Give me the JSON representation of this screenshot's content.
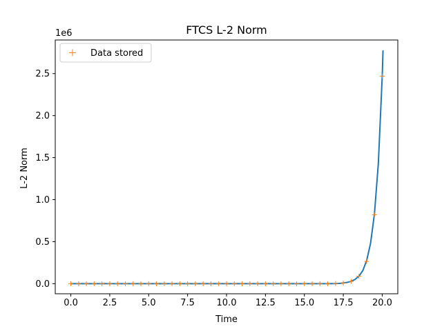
{
  "chart_data": {
    "type": "line",
    "title": "FTCS L-2 Norm",
    "xlabel": "Time",
    "ylabel": "L-2 Norm",
    "y_offset_label": "1e6",
    "xlim": [
      -1.0,
      21.0
    ],
    "ylim": [
      -120000,
      2900000
    ],
    "x_ticks": [
      0.0,
      2.5,
      5.0,
      7.5,
      10.0,
      12.5,
      15.0,
      17.5,
      20.0
    ],
    "x_tick_labels": [
      "0.0",
      "2.5",
      "5.0",
      "7.5",
      "10.0",
      "12.5",
      "15.0",
      "17.5",
      "20.0"
    ],
    "y_ticks": [
      0,
      500000,
      1000000,
      1500000,
      2000000,
      2500000
    ],
    "y_tick_labels": [
      "0.0",
      "0.5",
      "1.0",
      "1.5",
      "2.0",
      "2.5"
    ],
    "grid": false,
    "legend_position": "top-left",
    "series": [
      {
        "name": "",
        "kind": "line",
        "color": "#1f77b4",
        "x": [
          0,
          0.5,
          1,
          1.5,
          2,
          2.5,
          3,
          3.5,
          4,
          4.5,
          5,
          5.5,
          6,
          6.5,
          7,
          7.5,
          8,
          8.5,
          9,
          9.5,
          10,
          10.5,
          11,
          11.5,
          12,
          12.5,
          13,
          13.5,
          14,
          14.5,
          15,
          15.5,
          16,
          16.5,
          17,
          17.25,
          17.5,
          17.75,
          18,
          18.25,
          18.5,
          18.75,
          19,
          19.25,
          19.5,
          19.75,
          20,
          20.05
        ],
        "y": [
          0,
          0,
          0,
          0,
          0,
          0,
          0,
          0,
          0,
          0,
          0,
          0,
          0,
          0,
          0,
          0,
          0,
          0,
          0,
          0,
          0,
          0,
          0,
          0,
          0,
          0,
          0,
          0,
          0,
          0,
          0,
          0,
          15,
          50,
          1500,
          3000,
          8000,
          15000,
          28000,
          50000,
          88000,
          155000,
          275000,
          480000,
          830000,
          1430000,
          2470000,
          2770000
        ]
      },
      {
        "name": "Data stored",
        "kind": "marker",
        "marker": "+",
        "color": "#ff7f0e",
        "x": [
          0,
          0.5,
          1,
          1.5,
          2,
          2.5,
          3,
          3.5,
          4,
          4.5,
          5,
          5.5,
          6,
          6.5,
          7,
          7.5,
          8,
          8.5,
          9,
          9.5,
          10,
          10.5,
          11,
          11.5,
          12,
          12.5,
          13,
          13.5,
          14,
          14.5,
          15,
          15.5,
          16,
          16.5,
          17,
          17.5,
          18,
          18.5,
          19,
          19.5,
          20
        ],
        "y": [
          0,
          0,
          0,
          0,
          0,
          0,
          0,
          0,
          0,
          0,
          0,
          0,
          0,
          0,
          0,
          0,
          0,
          0,
          0,
          0,
          0,
          0,
          0,
          0,
          0,
          0,
          0,
          0,
          0,
          0,
          0,
          0,
          0,
          0,
          1500,
          8000,
          28000,
          88000,
          265000,
          820000,
          2470000
        ]
      }
    ]
  }
}
